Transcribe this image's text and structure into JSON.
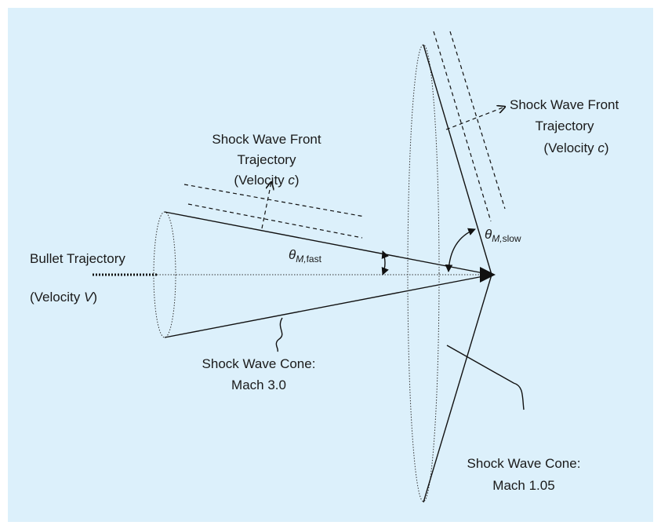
{
  "left_front_label": {
    "line1": "Shock Wave Front",
    "line2": "Trajectory",
    "line3_prefix": "(Velocity ",
    "line3_var": "c",
    "line3_suffix": ")"
  },
  "right_front_label": {
    "line1": "Shock Wave Front",
    "line2": "Trajectory",
    "line3_prefix": "(Velocity ",
    "line3_var": "c",
    "line3_suffix": ")"
  },
  "bullet_label": {
    "line1": "Bullet Trajectory",
    "line2_prefix": "(Velocity ",
    "line2_var": "V",
    "line2_suffix": ")"
  },
  "angle_fast": {
    "symbol": "θ",
    "subscript_var": "M,",
    "subscript_text": "fast"
  },
  "angle_slow": {
    "symbol": "θ",
    "subscript_var": "M,",
    "subscript_text": "slow"
  },
  "cone_fast_label": {
    "line1": "Shock Wave Cone:",
    "line2": "Mach 3.0"
  },
  "cone_slow_label": {
    "line1": "Shock Wave Cone:",
    "line2": "Mach 1.05"
  }
}
